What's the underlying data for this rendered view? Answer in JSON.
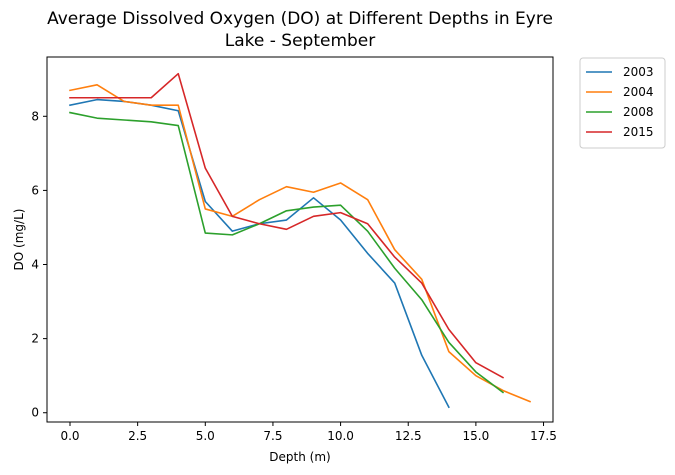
{
  "chart_data": {
    "type": "line",
    "title_lines": [
      "Average Dissolved Oxygen (DO) at Different Depths in Eyre",
      "Lake - September"
    ],
    "xlabel": "Depth (m)",
    "ylabel": "DO (mg/L)",
    "xlim": [
      -0.85,
      17.85
    ],
    "ylim": [
      -0.25,
      9.6
    ],
    "xticks": [
      0.0,
      2.5,
      5.0,
      7.5,
      10.0,
      12.5,
      15.0,
      17.5
    ],
    "xtick_labels": [
      "0.0",
      "2.5",
      "5.0",
      "7.5",
      "10.0",
      "12.5",
      "15.0",
      "17.5"
    ],
    "yticks": [
      0,
      2,
      4,
      6,
      8
    ],
    "ytick_labels": [
      "0",
      "2",
      "4",
      "6",
      "8"
    ],
    "grid": false,
    "legend_position": "outside-top-right",
    "series": [
      {
        "name": "2003",
        "color": "#1f77b4",
        "x": [
          0,
          1,
          2,
          3,
          4,
          5,
          6,
          7,
          8,
          9,
          10,
          11,
          12,
          13,
          14
        ],
        "y": [
          8.3,
          8.45,
          8.4,
          8.3,
          8.15,
          5.7,
          4.9,
          5.1,
          5.2,
          5.8,
          5.2,
          4.3,
          3.5,
          1.55,
          0.15
        ]
      },
      {
        "name": "2004",
        "color": "#ff7f0e",
        "x": [
          0,
          1,
          2,
          3,
          4,
          5,
          6,
          7,
          8,
          9,
          10,
          11,
          12,
          13,
          14,
          15,
          16,
          17
        ],
        "y": [
          8.7,
          8.85,
          8.4,
          8.3,
          8.3,
          5.5,
          5.3,
          5.75,
          6.1,
          5.95,
          6.2,
          5.75,
          4.4,
          3.6,
          1.65,
          1.0,
          0.6,
          0.3
        ]
      },
      {
        "name": "2008",
        "color": "#2ca02c",
        "x": [
          0,
          1,
          2,
          3,
          4,
          5,
          6,
          7,
          8,
          9,
          10,
          11,
          12,
          13,
          14,
          15,
          16
        ],
        "y": [
          8.1,
          7.95,
          7.9,
          7.85,
          7.75,
          4.85,
          4.8,
          5.1,
          5.45,
          5.55,
          5.6,
          4.9,
          3.9,
          3.05,
          1.9,
          1.1,
          0.55
        ]
      },
      {
        "name": "2015",
        "color": "#d62728",
        "x": [
          0,
          1,
          2,
          3,
          4,
          5,
          6,
          7,
          8,
          9,
          10,
          11,
          12,
          13,
          14,
          15,
          16
        ],
        "y": [
          8.5,
          8.5,
          8.5,
          8.5,
          9.15,
          6.6,
          5.3,
          5.1,
          4.95,
          5.3,
          5.4,
          5.1,
          4.2,
          3.5,
          2.25,
          1.35,
          0.95
        ]
      }
    ]
  }
}
